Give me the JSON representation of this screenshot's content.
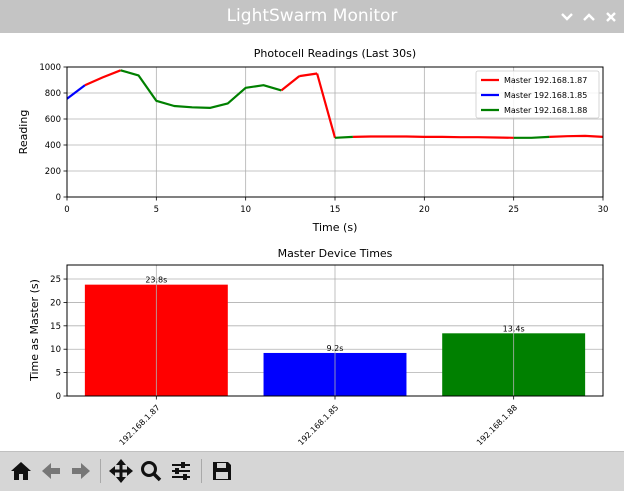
{
  "window": {
    "title": "LightSwarm Monitor",
    "controls": [
      "minimize-chevron-down",
      "maximize-chevron-up",
      "close-x"
    ]
  },
  "toolbar": {
    "buttons": [
      "home-icon",
      "back-arrow-icon",
      "forward-arrow-icon",
      "pan-move-icon",
      "zoom-magnifier-icon",
      "configure-subplots-icon",
      "save-floppy-icon"
    ]
  },
  "chart_data": [
    {
      "type": "line",
      "title": "Photocell Readings (Last 30s)",
      "xlabel": "Time (s)",
      "ylabel": "Reading",
      "xlim": [
        0,
        30
      ],
      "ylim": [
        0,
        1000
      ],
      "xticks": [
        "0",
        "5",
        "10",
        "15",
        "20",
        "25",
        "30"
      ],
      "yticks": [
        "0",
        "200",
        "400",
        "600",
        "800",
        "1000"
      ],
      "grid": true,
      "legend_position": "upper-right",
      "legend": [
        "Master 192.168.1.87",
        "Master 192.168.1.85",
        "Master 192.168.1.88"
      ],
      "colors": [
        "#ff0000",
        "#0000ff",
        "#008000"
      ],
      "segments": [
        {
          "series": 1,
          "x": [
            0,
            1
          ],
          "y": [
            755,
            860
          ]
        },
        {
          "series": 0,
          "x": [
            1,
            2,
            3
          ],
          "y": [
            860,
            920,
            975
          ]
        },
        {
          "series": 2,
          "x": [
            3,
            4,
            5,
            6,
            7,
            8,
            9,
            10,
            11,
            12
          ],
          "y": [
            975,
            935,
            740,
            700,
            690,
            685,
            720,
            840,
            860,
            820
          ]
        },
        {
          "series": 0,
          "x": [
            12,
            13
          ],
          "y": [
            820,
            930
          ]
        },
        {
          "series": 0,
          "x": [
            13,
            14
          ],
          "y": [
            930,
            950
          ]
        },
        {
          "series": 0,
          "x": [
            14,
            15
          ],
          "y": [
            950,
            455
          ]
        },
        {
          "series": 2,
          "x": [
            15,
            16
          ],
          "y": [
            455,
            462
          ]
        },
        {
          "series": 0,
          "x": [
            16,
            17,
            18,
            19,
            20,
            21,
            22,
            23,
            24,
            25
          ],
          "y": [
            462,
            465,
            465,
            465,
            462,
            462,
            460,
            460,
            458,
            455
          ]
        },
        {
          "series": 2,
          "x": [
            25,
            26,
            27
          ],
          "y": [
            455,
            455,
            462
          ]
        },
        {
          "series": 0,
          "x": [
            27,
            28,
            29,
            30
          ],
          "y": [
            462,
            468,
            470,
            462
          ]
        }
      ]
    },
    {
      "type": "bar",
      "title": "Master Device Times",
      "xlabel": "",
      "ylabel": "Time as Master (s)",
      "ylim": [
        0,
        28
      ],
      "yticks": [
        "0",
        "5",
        "10",
        "15",
        "20",
        "25"
      ],
      "grid": true,
      "categories": [
        "192.168.1.87",
        "192.168.1.85",
        "192.168.1.88"
      ],
      "values": [
        23.8,
        9.2,
        13.4
      ],
      "value_labels": [
        "23.8s",
        "9.2s",
        "13.4s"
      ],
      "colors": [
        "#ff0000",
        "#0000ff",
        "#008000"
      ]
    }
  ]
}
